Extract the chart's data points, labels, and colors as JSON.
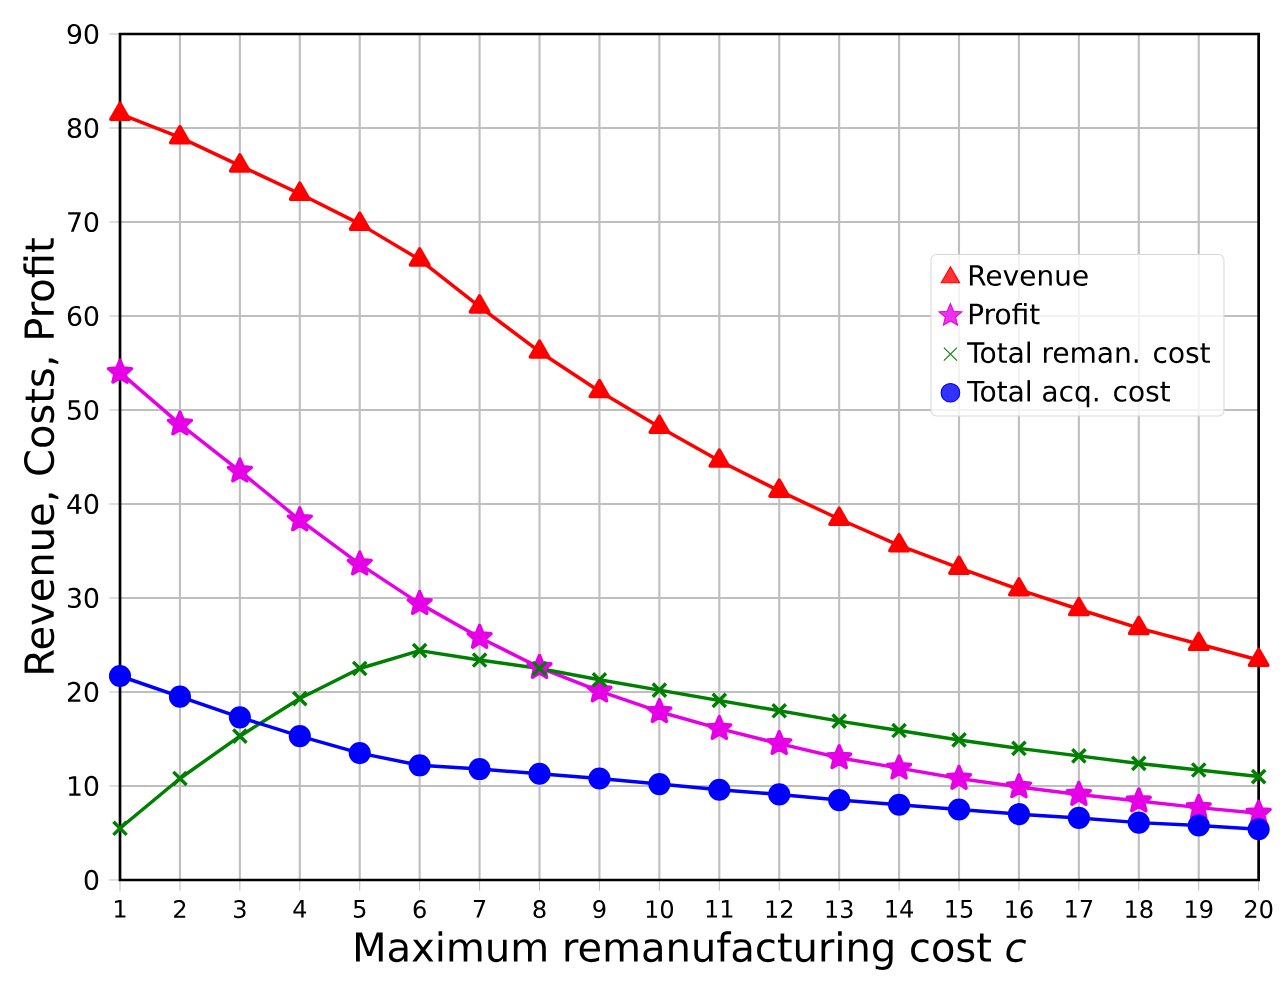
{
  "chart_data": {
    "type": "line",
    "xlabel": "Maximum remanufacturing cost *c*",
    "ylabel": "Revenue, Costs, Profit",
    "x": [
      1,
      2,
      3,
      4,
      5,
      6,
      7,
      8,
      9,
      10,
      11,
      12,
      13,
      14,
      15,
      16,
      17,
      18,
      19,
      20
    ],
    "series": [
      {
        "name": "Revenue",
        "color": "#ff0000",
        "marker": "triangle",
        "values": [
          81.5,
          79,
          76,
          73,
          69.8,
          66,
          61,
          56.2,
          52,
          48.2,
          44.6,
          41.4,
          38.4,
          35.6,
          33.2,
          30.9,
          28.8,
          26.8,
          25.1,
          23.4
        ]
      },
      {
        "name": "Profit",
        "color": "#e600e6",
        "marker": "star",
        "values": [
          54,
          48.5,
          43.5,
          38.3,
          33.6,
          29.4,
          25.8,
          22.6,
          20.1,
          17.9,
          16.1,
          14.5,
          13,
          11.9,
          10.8,
          9.9,
          9.1,
          8.4,
          7.7,
          7.1
        ]
      },
      {
        "name": "Total reman. cost",
        "color": "#008000",
        "marker": "cross",
        "values": [
          5.5,
          10.8,
          15.3,
          19.3,
          22.5,
          24.4,
          23.4,
          22.5,
          21.3,
          20.2,
          19.1,
          18,
          16.9,
          15.9,
          14.9,
          14,
          13.2,
          12.4,
          11.7,
          11
        ]
      },
      {
        "name": "Total acq. cost",
        "color": "#0000ff",
        "marker": "circle",
        "values": [
          21.7,
          19.5,
          17.3,
          15.3,
          13.5,
          12.2,
          11.8,
          11.3,
          10.8,
          10.2,
          9.6,
          9.1,
          8.5,
          8,
          7.5,
          7,
          6.6,
          6.1,
          5.8,
          5.4
        ]
      }
    ],
    "xlim": [
      1,
      20
    ],
    "ylim": [
      0,
      90
    ],
    "xticks": [
      1,
      2,
      3,
      4,
      5,
      6,
      7,
      8,
      9,
      10,
      11,
      12,
      13,
      14,
      15,
      16,
      17,
      18,
      19,
      20
    ],
    "yticks": [
      0,
      10,
      20,
      30,
      40,
      50,
      60,
      70,
      80,
      90
    ],
    "grid": true,
    "legend": "right",
    "line_style": "solid"
  }
}
